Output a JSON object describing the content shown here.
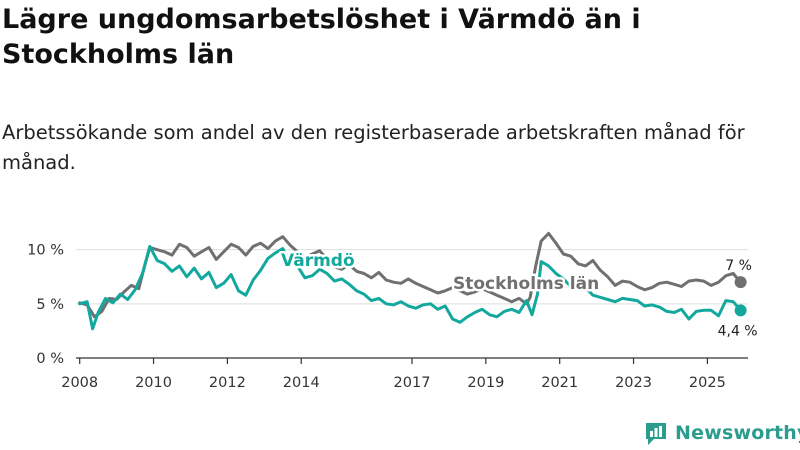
{
  "title": "Lägre ungdomsarbetslöshet i Värmdö än i Stockholms län",
  "subtitle": "Arbetssökande som andel av den registerbaserade arbetskraften månad för månad.",
  "brand": "Newsworthy",
  "colors": {
    "varmdo": "#13a89e",
    "stockholm": "#707070",
    "grid": "#dddddd",
    "axis": "#333333",
    "brand": "#2a9d8f"
  },
  "chart_data": {
    "type": "line",
    "title": "Lägre ungdomsarbetslöshet i Värmdö än i Stockholms län",
    "xlabel": "",
    "ylabel": "",
    "xlim": [
      2007.9,
      2026.1
    ],
    "ylim": [
      0,
      12
    ],
    "y_ticks": [
      0,
      5,
      10
    ],
    "y_tick_labels": [
      "0 %",
      "5 %",
      "10 %"
    ],
    "x_ticks": [
      2008,
      2010,
      2012,
      2014,
      2017,
      2019,
      2021,
      2023,
      2025
    ],
    "x_tick_labels": [
      "2008",
      "2010",
      "2012",
      "2014",
      "2017",
      "2019",
      "2021",
      "2023",
      "2025"
    ],
    "grid": true,
    "series": [
      {
        "name": "Stockholms län",
        "label": "Stockholms län",
        "color": "#707070",
        "end_label": "7 %",
        "end_value": 7.0,
        "x": [
          2008.0,
          2008.2,
          2008.4,
          2008.6,
          2008.8,
          2009.0,
          2009.2,
          2009.4,
          2009.6,
          2009.75,
          2009.9,
          2010.1,
          2010.3,
          2010.5,
          2010.7,
          2010.9,
          2011.1,
          2011.3,
          2011.5,
          2011.7,
          2011.9,
          2012.1,
          2012.3,
          2012.5,
          2012.7,
          2012.9,
          2013.1,
          2013.3,
          2013.5,
          2013.7,
          2013.9,
          2014.1,
          2014.3,
          2014.5,
          2014.7,
          2014.9,
          2015.1,
          2015.3,
          2015.5,
          2015.7,
          2015.9,
          2016.1,
          2016.3,
          2016.5,
          2016.7,
          2016.9,
          2017.1,
          2017.3,
          2017.5,
          2017.7,
          2017.9,
          2018.1,
          2018.3,
          2018.5,
          2018.7,
          2018.9,
          2019.1,
          2019.3,
          2019.5,
          2019.7,
          2019.9,
          2020.1,
          2020.2,
          2020.35,
          2020.5,
          2020.7,
          2020.9,
          2021.1,
          2021.3,
          2021.5,
          2021.7,
          2021.9,
          2022.1,
          2022.3,
          2022.5,
          2022.7,
          2022.9,
          2023.1,
          2023.3,
          2023.5,
          2023.7,
          2023.9,
          2024.1,
          2024.3,
          2024.5,
          2024.7,
          2024.9,
          2025.1,
          2025.3,
          2025.5,
          2025.7,
          2025.9
        ],
        "values": [
          5.1,
          4.9,
          3.8,
          4.3,
          5.5,
          5.4,
          6.1,
          6.7,
          6.4,
          8.4,
          10.2,
          10.0,
          9.8,
          9.5,
          10.5,
          10.2,
          9.4,
          9.8,
          10.2,
          9.1,
          9.8,
          10.5,
          10.2,
          9.5,
          10.3,
          10.6,
          10.1,
          10.8,
          11.2,
          10.4,
          9.8,
          9.3,
          9.6,
          9.9,
          9.1,
          8.4,
          8.2,
          8.6,
          8.0,
          7.8,
          7.4,
          7.9,
          7.2,
          7.0,
          6.9,
          7.3,
          6.9,
          6.6,
          6.3,
          6.0,
          6.2,
          6.5,
          6.2,
          5.9,
          6.1,
          6.4,
          6.1,
          5.8,
          5.5,
          5.2,
          5.5,
          5.0,
          5.6,
          8.5,
          10.8,
          11.5,
          10.6,
          9.6,
          9.4,
          8.7,
          8.5,
          9.0,
          8.1,
          7.5,
          6.7,
          7.1,
          7.0,
          6.6,
          6.3,
          6.5,
          6.9,
          7.0,
          6.8,
          6.6,
          7.1,
          7.2,
          7.1,
          6.7,
          7.0,
          7.6,
          7.8,
          7.0
        ]
      },
      {
        "name": "Värmdö",
        "label": "Värmdö",
        "color": "#13a89e",
        "end_label": "4,4 %",
        "end_value": 4.4,
        "x": [
          2008.0,
          2008.2,
          2008.35,
          2008.5,
          2008.7,
          2008.9,
          2009.1,
          2009.3,
          2009.5,
          2009.7,
          2009.9,
          2010.1,
          2010.3,
          2010.5,
          2010.7,
          2010.9,
          2011.1,
          2011.3,
          2011.5,
          2011.7,
          2011.9,
          2012.1,
          2012.3,
          2012.5,
          2012.7,
          2012.9,
          2013.1,
          2013.3,
          2013.5,
          2013.7,
          2013.9,
          2014.1,
          2014.3,
          2014.5,
          2014.7,
          2014.9,
          2015.1,
          2015.3,
          2015.5,
          2015.7,
          2015.9,
          2016.1,
          2016.3,
          2016.5,
          2016.7,
          2016.9,
          2017.1,
          2017.3,
          2017.5,
          2017.7,
          2017.9,
          2018.1,
          2018.3,
          2018.5,
          2018.7,
          2018.9,
          2019.1,
          2019.3,
          2019.5,
          2019.7,
          2019.9,
          2020.1,
          2020.25,
          2020.4,
          2020.5,
          2020.7,
          2020.9,
          2021.1,
          2021.3,
          2021.5,
          2021.7,
          2021.9,
          2022.1,
          2022.3,
          2022.5,
          2022.7,
          2022.9,
          2023.1,
          2023.3,
          2023.5,
          2023.7,
          2023.9,
          2024.1,
          2024.3,
          2024.5,
          2024.7,
          2024.9,
          2025.1,
          2025.3,
          2025.5,
          2025.7,
          2025.9
        ],
        "values": [
          5.0,
          5.2,
          2.7,
          4.2,
          5.5,
          5.1,
          5.9,
          5.4,
          6.3,
          7.8,
          10.3,
          9.0,
          8.7,
          8.0,
          8.5,
          7.5,
          8.3,
          7.3,
          7.9,
          6.5,
          6.9,
          7.7,
          6.2,
          5.8,
          7.2,
          8.1,
          9.2,
          9.7,
          10.1,
          8.8,
          8.5,
          7.4,
          7.6,
          8.2,
          7.8,
          7.1,
          7.3,
          6.8,
          6.2,
          5.9,
          5.3,
          5.5,
          5.0,
          4.9,
          5.2,
          4.8,
          4.6,
          4.9,
          5.0,
          4.5,
          4.8,
          3.6,
          3.3,
          3.8,
          4.2,
          4.5,
          4.0,
          3.8,
          4.3,
          4.5,
          4.2,
          5.3,
          4.0,
          5.9,
          8.9,
          8.5,
          7.8,
          7.3,
          6.6,
          7.0,
          6.5,
          5.8,
          5.6,
          5.4,
          5.2,
          5.5,
          5.4,
          5.3,
          4.8,
          4.9,
          4.7,
          4.3,
          4.2,
          4.5,
          3.6,
          4.3,
          4.4,
          4.4,
          3.9,
          5.3,
          5.2,
          4.4
        ]
      }
    ]
  }
}
